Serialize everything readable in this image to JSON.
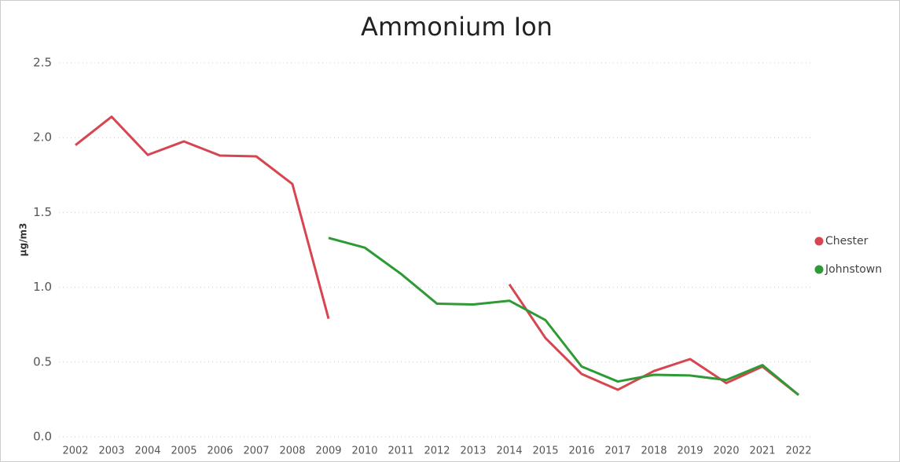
{
  "chart_data": {
    "type": "line",
    "title": "Ammonium Ion",
    "y_label": "µg/m3",
    "categories": [
      "2002",
      "2003",
      "2004",
      "2005",
      "2006",
      "2007",
      "2008",
      "2009",
      "2010",
      "2011",
      "2012",
      "2013",
      "2014",
      "2015",
      "2016",
      "2017",
      "2018",
      "2019",
      "2020",
      "2021",
      "2022"
    ],
    "series": [
      {
        "name": "Chester",
        "color": "#d64550",
        "values": [
          1.95,
          2.14,
          1.885,
          1.975,
          1.88,
          1.875,
          1.69,
          0.79,
          null,
          null,
          null,
          null,
          1.02,
          0.66,
          0.42,
          0.315,
          0.44,
          0.52,
          0.36,
          0.47,
          0.28
        ]
      },
      {
        "name": "Johnstown",
        "color": "#2e9a35",
        "values": [
          null,
          null,
          null,
          null,
          null,
          null,
          null,
          1.33,
          1.265,
          1.09,
          0.89,
          0.885,
          0.91,
          0.78,
          0.47,
          0.37,
          0.415,
          0.41,
          0.38,
          0.48,
          0.28
        ]
      }
    ],
    "ylim": [
      0,
      2.5
    ],
    "yticks": [
      {
        "value": 0,
        "label": "0.0"
      },
      0.5,
      {
        "value": 1,
        "label": "1.0"
      },
      1.5,
      {
        "value": 2,
        "label": "2.0"
      },
      2.5
    ],
    "grid": true,
    "legend": "right"
  }
}
